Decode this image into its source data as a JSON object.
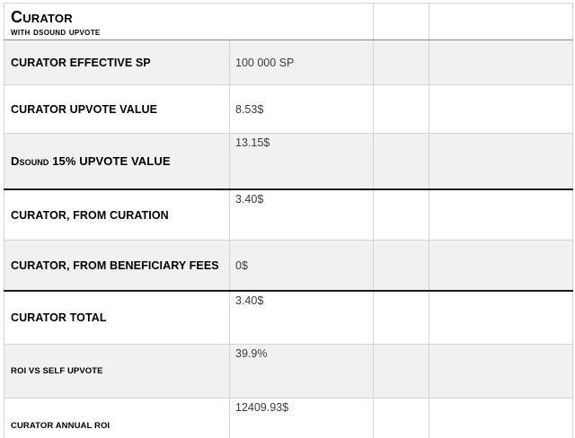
{
  "header": {
    "title": "Curator",
    "subtitle": "with dsound upvote"
  },
  "rows": [
    {
      "label": "CURATOR EFFECTIVE SP",
      "value": "100 000 SP"
    },
    {
      "label": "CURATOR UPVOTE VALUE",
      "value": "8.53$"
    },
    {
      "label": "Dsound 15% UPVOTE VALUE",
      "value": "13.15$"
    },
    {
      "label": "CURATOR, FROM CURATION",
      "value": "3.40$"
    },
    {
      "label": "CURATOR, FROM BENEFICIARY FEES",
      "value": "0$"
    },
    {
      "label": "CURATOR TOTAL",
      "value": "3.40$"
    },
    {
      "label": "ROI VS SELF UPVOTE",
      "value": "39.9%"
    },
    {
      "label": "CURATOR ANNUAL ROI",
      "value": "12409.93$"
    }
  ],
  "colors": {
    "row_shade": "#f1f1f1",
    "grid_line": "#d4d4d4",
    "header_rule": "#8a8a8a",
    "strong_rule": "#1a1a1a",
    "value_text": "#3c3c3c"
  }
}
